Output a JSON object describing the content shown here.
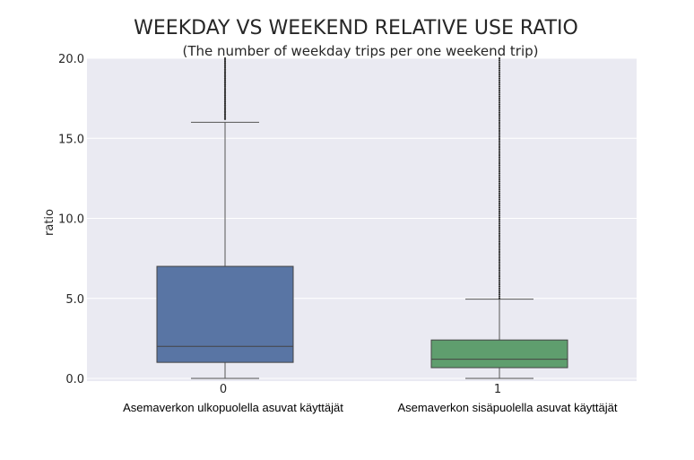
{
  "chart_data": {
    "type": "box",
    "title": "WEEKDAY VS WEEKEND RELATIVE USE RATIO",
    "subtitle": "(The number of weekday trips per one weekend trip)",
    "xlabel": "",
    "ylabel": "ratio",
    "ylim": [
      0,
      20
    ],
    "yticks": [
      "0.0",
      "5.0",
      "10.0",
      "15.0",
      "20.0"
    ],
    "grid": true,
    "categories": [
      "0",
      "1"
    ],
    "category_labels": [
      "Asemaverkon ulkopuolella asuvat käyttäjät",
      "Asemaverkon sisäpuolella asuvat käyttäjät"
    ],
    "boxes": [
      {
        "category": "0",
        "color": "#5975a4",
        "whisker_low": 0.0,
        "q1": 1.0,
        "median": 2.0,
        "q3": 7.0,
        "whisker_high": 16.0,
        "outliers_range": [
          16.2,
          20.0
        ]
      },
      {
        "category": "1",
        "color": "#5f9e6e",
        "whisker_low": 0.0,
        "q1": 0.67,
        "median": 1.2,
        "q3": 2.4,
        "whisker_high": 4.95,
        "outliers_range": [
          5.0,
          20.0
        ]
      }
    ],
    "colors": {
      "background": "#eaeaf2",
      "grid": "#ffffff",
      "whisker": "#555555"
    }
  }
}
